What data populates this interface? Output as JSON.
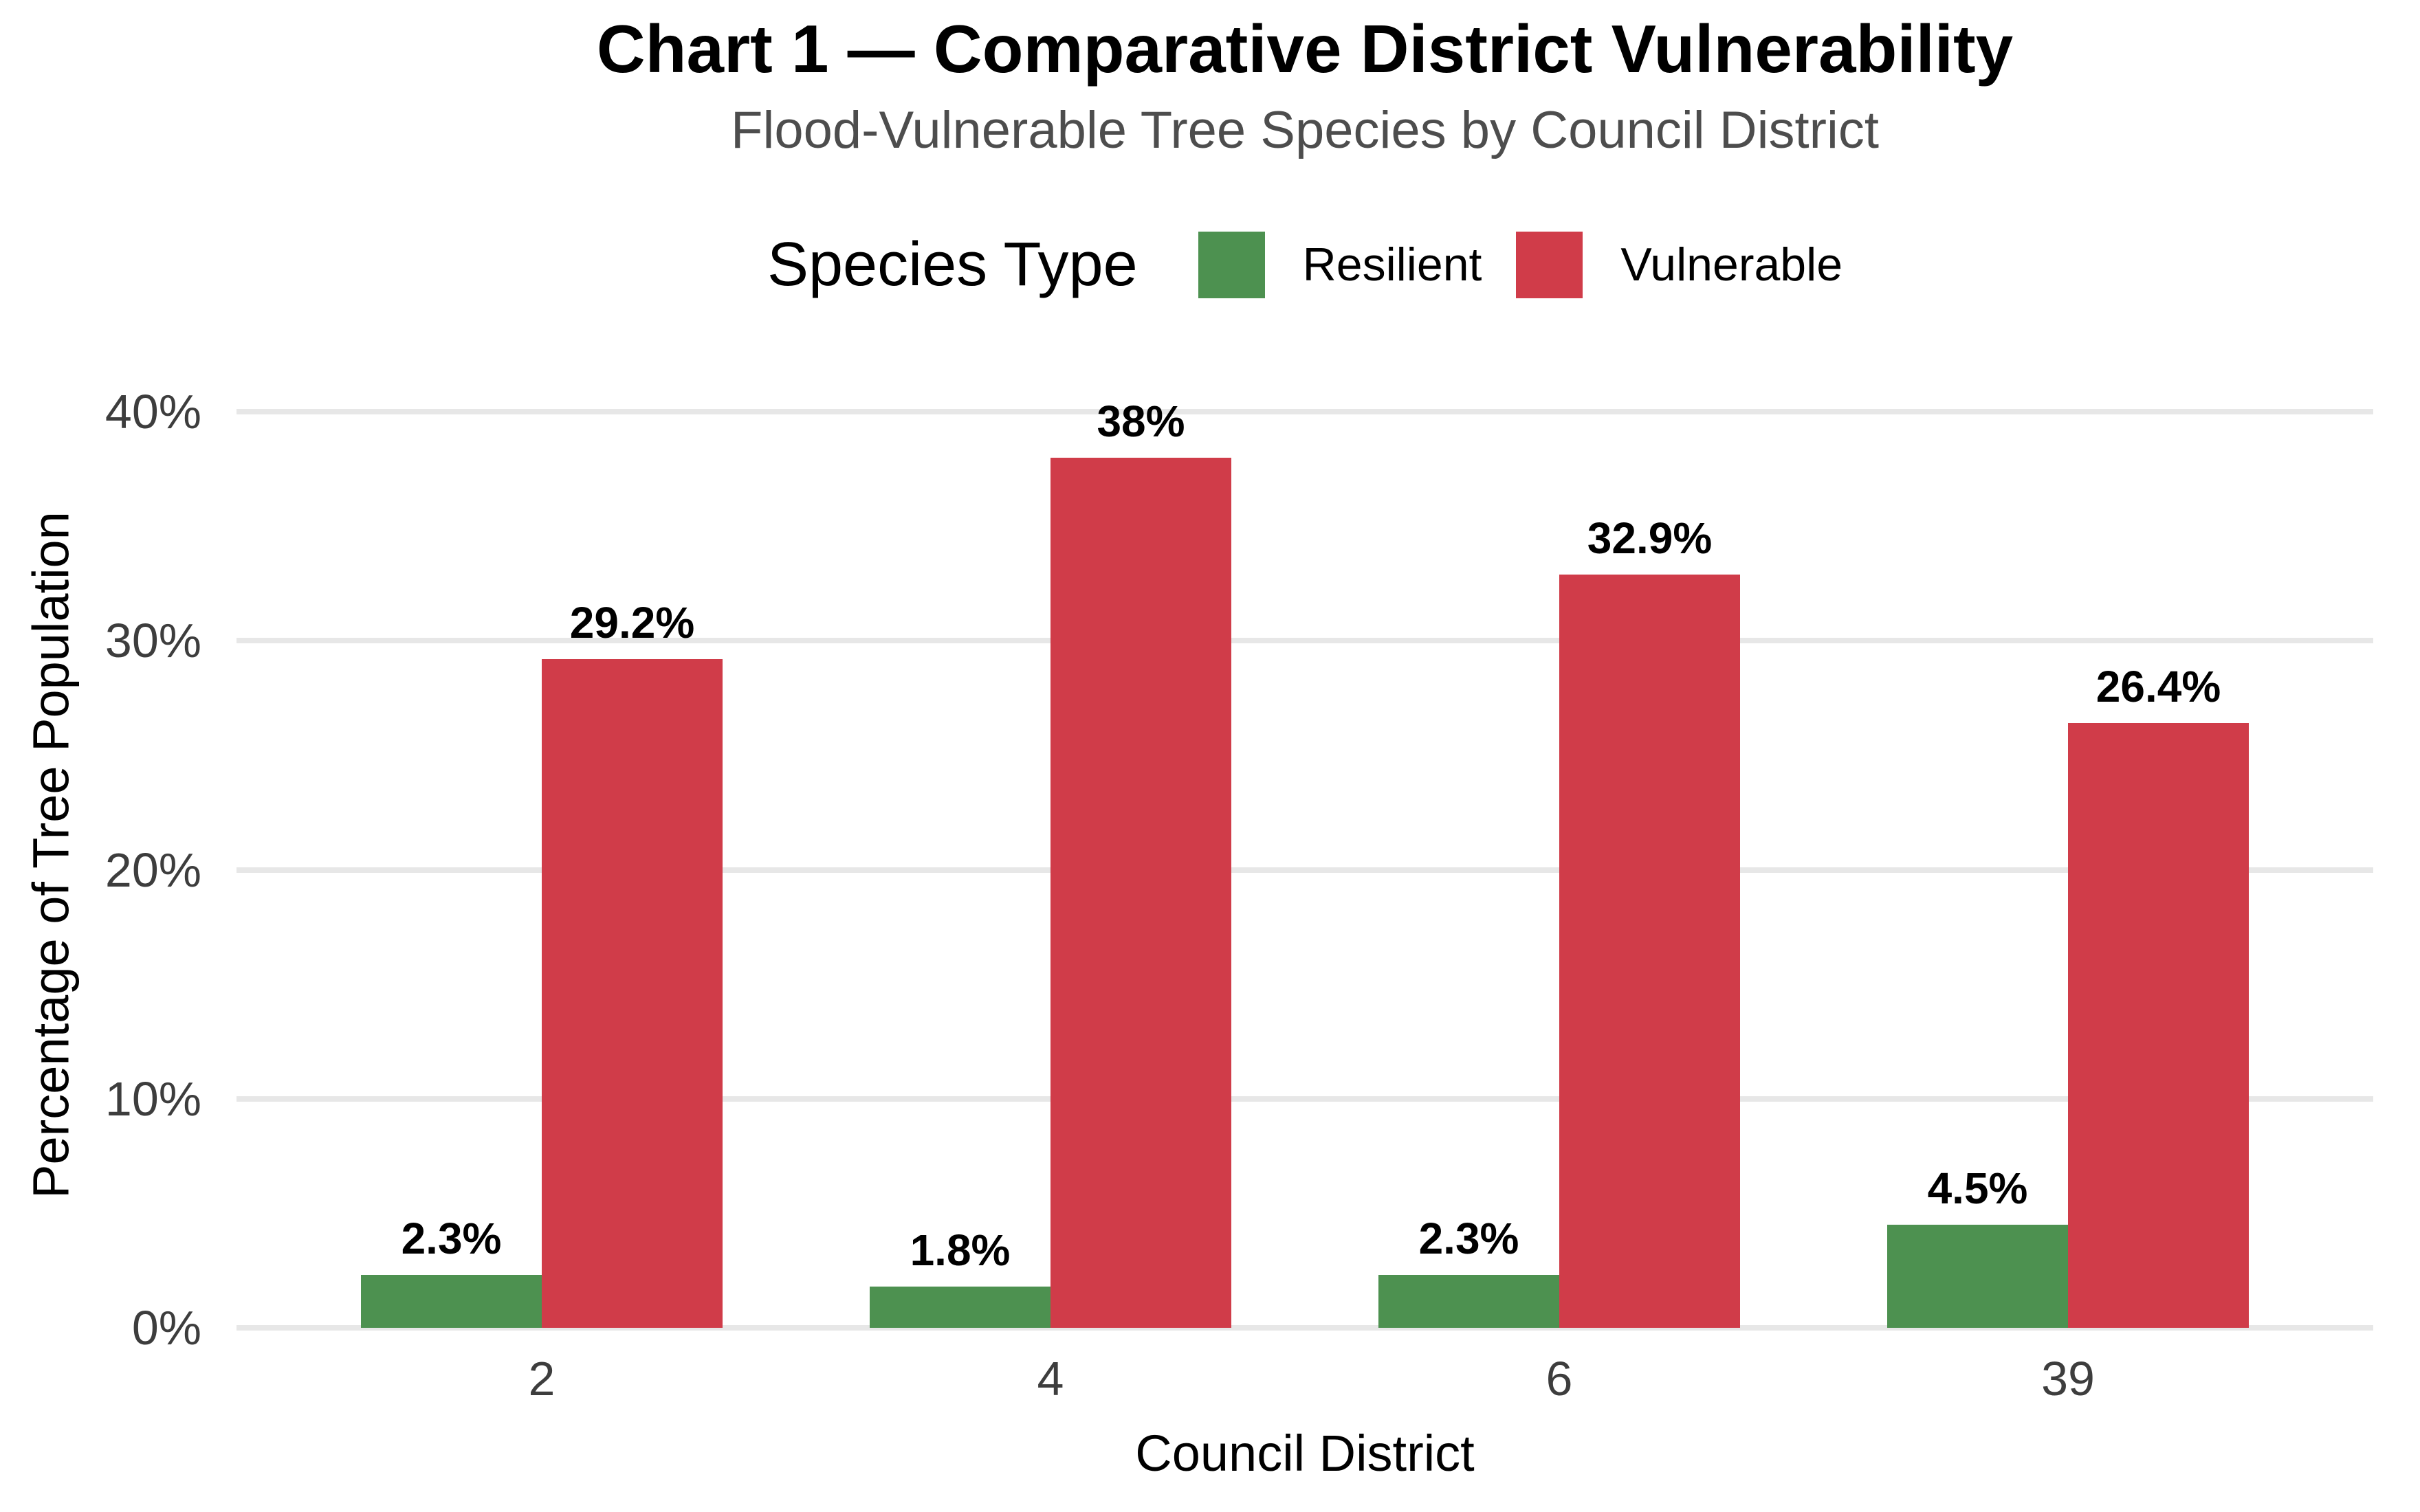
{
  "header": {
    "title": "Chart 1 — Comparative District Vulnerability",
    "subtitle": "Flood-Vulnerable Tree Species by Council District"
  },
  "legend": {
    "title": "Species Type",
    "items": [
      {
        "label": "Resilient",
        "color": "#4d9150"
      },
      {
        "label": "Vulnerable",
        "color": "#d03c49"
      }
    ]
  },
  "chart_data": {
    "type": "bar",
    "title": "Chart 1 — Comparative District Vulnerability",
    "subtitle": "Flood-Vulnerable Tree Species by Council District",
    "categories": [
      "2",
      "4",
      "6",
      "39"
    ],
    "series": [
      {
        "name": "Resilient",
        "color": "#4d9150",
        "values": [
          2.3,
          1.8,
          2.3,
          4.5
        ],
        "value_labels": [
          "2.3%",
          "1.8%",
          "2.3%",
          "4.5%"
        ]
      },
      {
        "name": "Vulnerable",
        "color": "#d03c49",
        "values": [
          29.2,
          38,
          32.9,
          26.4
        ],
        "value_labels": [
          "29.2%",
          "38%",
          "32.9%",
          "26.4%"
        ]
      }
    ],
    "xlabel": "Council District",
    "ylabel": "Percentage of Tree Population",
    "y_ticks": [
      {
        "value": 0,
        "label": "0%"
      },
      {
        "value": 10,
        "label": "10%"
      },
      {
        "value": 20,
        "label": "20%"
      },
      {
        "value": 30,
        "label": "30%"
      },
      {
        "value": 40,
        "label": "40%"
      }
    ],
    "ylim": [
      0,
      41.3
    ],
    "grid": "horizontal-only",
    "legend_position": "top",
    "colors": {
      "grid": "#e7e7e7",
      "tick_text": "#3d3d3d",
      "subtitle_text": "#4d4d4d",
      "axis_title_text": "#000000",
      "value_label_text": "#000000"
    }
  }
}
